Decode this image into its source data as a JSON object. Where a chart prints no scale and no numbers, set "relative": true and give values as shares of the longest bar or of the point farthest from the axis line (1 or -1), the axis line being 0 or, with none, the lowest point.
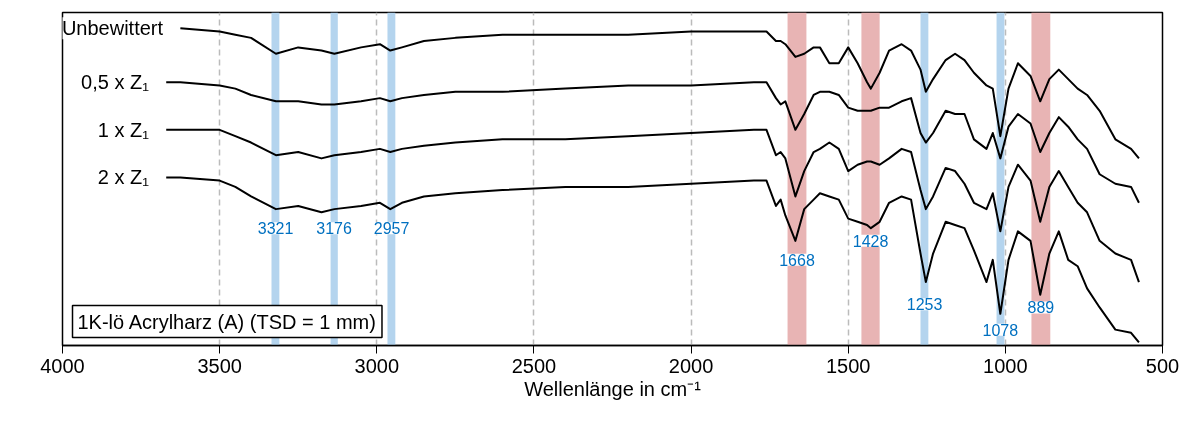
{
  "chart_data": {
    "type": "line",
    "relative": true,
    "xlabel": "Wellenlänge in cm⁻¹",
    "x": [
      3670,
      3625,
      3500,
      3450,
      3400,
      3321,
      3250,
      3176,
      3135,
      3050,
      2990,
      2957,
      2920,
      2850,
      2750,
      2600,
      2400,
      2200,
      2000,
      1800,
      1760,
      1730,
      1715,
      1700,
      1668,
      1640,
      1610,
      1590,
      1560,
      1530,
      1500,
      1470,
      1440,
      1428,
      1400,
      1370,
      1330,
      1300,
      1270,
      1253,
      1230,
      1190,
      1160,
      1130,
      1100,
      1060,
      1040,
      1016,
      990,
      960,
      920,
      889,
      860,
      830,
      800,
      770,
      740,
      700,
      650,
      600,
      575
    ],
    "xlim": [
      4000,
      500
    ],
    "xticks": [
      4000,
      3500,
      3000,
      2500,
      2000,
      1500,
      1000,
      500
    ],
    "grid": "x",
    "line_style": "solid",
    "marker": "none",
    "series": [
      {
        "name": "Unbewittert",
        "color": "#000000",
        "values": [
          null,
          1.0,
          0.99,
          0.98,
          0.97,
          0.92,
          0.94,
          0.93,
          0.92,
          0.94,
          0.95,
          0.93,
          0.94,
          0.96,
          0.97,
          0.98,
          0.98,
          0.98,
          0.99,
          0.99,
          0.99,
          0.96,
          0.96,
          0.95,
          0.91,
          0.92,
          0.94,
          0.94,
          0.89,
          0.89,
          0.94,
          0.89,
          0.83,
          0.81,
          0.86,
          0.93,
          0.95,
          0.93,
          0.87,
          0.8,
          0.84,
          0.9,
          0.92,
          0.9,
          0.86,
          0.82,
          0.81,
          0.66,
          0.81,
          0.89,
          0.85,
          0.77,
          0.84,
          0.87,
          0.84,
          0.81,
          0.79,
          0.74,
          0.65,
          0.62,
          0.59
        ]
      },
      {
        "name": "0,5 x Z₁",
        "color": "#000000",
        "values": [
          0.83,
          0.83,
          0.82,
          0.81,
          0.79,
          0.77,
          0.77,
          0.76,
          0.76,
          0.77,
          0.78,
          0.77,
          0.78,
          0.79,
          0.8,
          0.8,
          0.81,
          0.82,
          0.82,
          0.83,
          0.83,
          0.78,
          0.76,
          0.77,
          0.68,
          0.73,
          0.79,
          0.8,
          0.8,
          0.79,
          0.75,
          0.74,
          0.74,
          0.74,
          0.75,
          0.75,
          0.77,
          0.78,
          0.67,
          0.64,
          0.67,
          0.74,
          0.73,
          0.73,
          0.65,
          0.62,
          0.67,
          0.59,
          0.69,
          0.73,
          0.7,
          0.61,
          0.67,
          0.72,
          0.69,
          0.65,
          0.62,
          0.54,
          0.51,
          0.5,
          0.45
        ]
      },
      {
        "name": "1 x Z₁",
        "color": "#000000",
        "values": [
          0.68,
          0.68,
          0.68,
          0.66,
          0.64,
          0.6,
          0.61,
          0.59,
          0.6,
          0.61,
          0.62,
          0.61,
          0.62,
          0.63,
          0.64,
          0.65,
          0.65,
          0.66,
          0.67,
          0.68,
          0.68,
          0.6,
          0.61,
          0.59,
          0.47,
          0.55,
          0.61,
          0.62,
          0.64,
          0.62,
          0.55,
          0.57,
          0.58,
          0.58,
          0.57,
          0.59,
          0.62,
          0.61,
          0.49,
          0.43,
          0.47,
          0.56,
          0.55,
          0.51,
          0.45,
          0.43,
          0.48,
          0.36,
          0.5,
          0.57,
          0.52,
          0.39,
          0.5,
          0.55,
          0.5,
          0.45,
          0.42,
          0.33,
          0.29,
          0.27,
          0.2
        ]
      },
      {
        "name": "2 x Z₁",
        "color": "#000000",
        "values": [
          0.53,
          0.53,
          0.52,
          0.5,
          0.47,
          0.43,
          0.44,
          0.42,
          0.43,
          0.44,
          0.45,
          0.43,
          0.45,
          0.47,
          0.48,
          0.49,
          0.5,
          0.5,
          0.51,
          0.52,
          0.52,
          0.44,
          0.46,
          0.41,
          0.33,
          0.43,
          0.46,
          0.48,
          0.47,
          0.46,
          0.4,
          0.39,
          0.38,
          0.37,
          0.39,
          0.45,
          0.47,
          0.46,
          0.29,
          0.2,
          0.29,
          0.39,
          0.38,
          0.37,
          0.3,
          0.2,
          0.27,
          0.1,
          0.27,
          0.36,
          0.33,
          0.16,
          0.29,
          0.36,
          0.27,
          0.25,
          0.18,
          0.12,
          0.05,
          0.04,
          0.01
        ]
      }
    ],
    "bands": [
      {
        "axis": "x",
        "from": 3335,
        "to": 3310,
        "color": "#b4d4ee"
      },
      {
        "axis": "x",
        "from": 3147,
        "to": 3124,
        "color": "#b4d4ee"
      },
      {
        "axis": "x",
        "from": 2966,
        "to": 2941,
        "color": "#b4d4ee"
      },
      {
        "axis": "x",
        "from": 1693,
        "to": 1633,
        "color": "#e8b4b4"
      },
      {
        "axis": "x",
        "from": 1458,
        "to": 1400,
        "color": "#e8b4b4"
      },
      {
        "axis": "x",
        "from": 1270,
        "to": 1245,
        "color": "#b4d4ee"
      },
      {
        "axis": "x",
        "from": 1028,
        "to": 1003,
        "color": "#b4d4ee"
      },
      {
        "axis": "x",
        "from": 917,
        "to": 857,
        "color": "#e8b4b4"
      }
    ],
    "annotations": [
      "1K-lö Acrylharz (A) (TSD = 1 mm)",
      {
        "text": "3321",
        "x": 3322,
        "y": 0.37
      },
      {
        "text": "3176",
        "x": 3136,
        "y": 0.37
      },
      {
        "text": "2957",
        "x": 2953,
        "y": 0.37
      },
      {
        "text": "1668",
        "x": 1663,
        "y": 0.27
      },
      {
        "text": "1428",
        "x": 1429,
        "y": 0.33
      },
      {
        "text": "1253",
        "x": 1257,
        "y": 0.13
      },
      {
        "text": "1078",
        "x": 1016,
        "y": 0.05
      },
      {
        "text": "889",
        "x": 887,
        "y": 0.12
      }
    ]
  }
}
